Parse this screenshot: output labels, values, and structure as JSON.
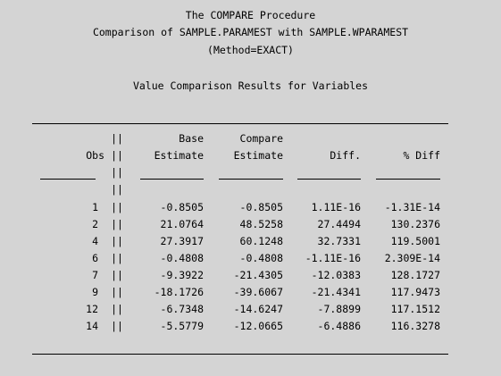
{
  "header": {
    "title": "The COMPARE Procedure",
    "subtitle": "Comparison of SAMPLE.PARAMEST with SAMPLE.WPARAMEST",
    "method": "(Method=EXACT)",
    "section": "Value Comparison Results for Variables"
  },
  "columns": {
    "obs": "Obs",
    "separator": "||",
    "base_line1": "Base",
    "base_line2": "Estimate",
    "compare_line1": "Compare",
    "compare_line2": "Estimate",
    "diff": "Diff.",
    "pct_diff": "% Diff"
  },
  "rows": [
    {
      "obs": "1",
      "base": "-0.8505",
      "compare": "-0.8505",
      "diff": "1.11E-16",
      "pct": "-1.31E-14"
    },
    {
      "obs": "2",
      "base": "21.0764",
      "compare": "48.5258",
      "diff": "27.4494",
      "pct": "130.2376"
    },
    {
      "obs": "4",
      "base": "27.3917",
      "compare": "60.1248",
      "diff": "32.7331",
      "pct": "119.5001"
    },
    {
      "obs": "6",
      "base": "-0.4808",
      "compare": "-0.4808",
      "diff": "-1.11E-16",
      "pct": "2.309E-14"
    },
    {
      "obs": "7",
      "base": "-9.3922",
      "compare": "-21.4305",
      "diff": "-12.0383",
      "pct": "128.1727"
    },
    {
      "obs": "9",
      "base": "-18.1726",
      "compare": "-39.6067",
      "diff": "-21.4341",
      "pct": "117.9473"
    },
    {
      "obs": "12",
      "base": "-6.7348",
      "compare": "-14.6247",
      "diff": "-7.8899",
      "pct": "117.1512"
    },
    {
      "obs": "14",
      "base": "-5.5779",
      "compare": "-12.0665",
      "diff": "-6.4886",
      "pct": "116.3278"
    }
  ]
}
